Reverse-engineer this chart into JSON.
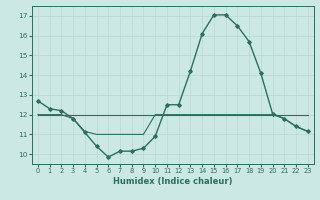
{
  "xlabel": "Humidex (Indice chaleur)",
  "x_values": [
    0,
    1,
    2,
    3,
    4,
    5,
    6,
    7,
    8,
    9,
    10,
    11,
    12,
    13,
    14,
    15,
    16,
    17,
    18,
    19,
    20,
    21,
    22,
    23
  ],
  "line1_y": [
    12.7,
    12.3,
    12.2,
    11.8,
    11.1,
    10.4,
    9.85,
    10.15,
    10.15,
    10.3,
    10.9,
    12.5,
    12.5,
    14.2,
    16.1,
    17.05,
    17.05,
    16.5,
    15.7,
    14.1,
    12.05,
    11.8,
    11.4,
    11.15
  ],
  "line2_y": [
    12.0,
    12.0,
    12.0,
    11.8,
    11.15,
    11.0,
    11.0,
    11.0,
    11.0,
    11.0,
    12.0,
    12.0,
    12.0,
    12.0,
    12.0,
    12.0,
    12.0,
    12.0,
    12.0,
    12.0,
    12.0,
    11.8,
    11.4,
    11.15
  ],
  "line3_y": [
    12.0,
    12.0,
    12.0,
    12.0,
    12.0,
    12.0,
    12.0,
    12.0,
    12.0,
    12.0,
    12.0,
    12.0,
    12.0,
    12.0,
    12.0,
    12.0,
    12.0,
    12.0,
    12.0,
    12.0,
    12.0,
    12.0,
    12.0,
    12.0
  ],
  "line_color": "#2d6e5e",
  "bg_color": "#cce8e4",
  "grid_major_color": "#b8d8d4",
  "grid_minor_color": "#c8e4e0",
  "axis_color": "#2d6e5e",
  "tick_color": "#2d6e5e",
  "ylim": [
    9.5,
    17.5
  ],
  "xlim": [
    -0.5,
    23.5
  ],
  "yticks": [
    10,
    11,
    12,
    13,
    14,
    15,
    16,
    17
  ],
  "xticks": [
    0,
    1,
    2,
    3,
    4,
    5,
    6,
    7,
    8,
    9,
    10,
    11,
    12,
    13,
    14,
    15,
    16,
    17,
    18,
    19,
    20,
    21,
    22,
    23
  ],
  "xlabel_fontsize": 6.0,
  "tick_fontsize": 4.8
}
